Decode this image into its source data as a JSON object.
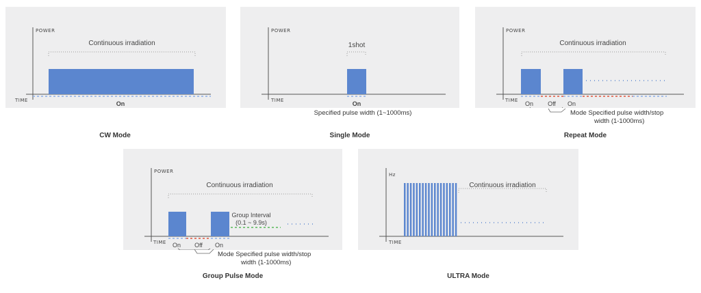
{
  "axis": {
    "power": "POWER",
    "time": "TIME",
    "hz": "Hz"
  },
  "colors": {
    "bar": "#5b86cf",
    "red": "#e0543c",
    "blue_dash": "#8aaee8",
    "green": "#58b85a",
    "panel": "#eeeeef",
    "axis": "#555555"
  },
  "cw": {
    "caption": "CW Mode",
    "range_label": "Continuous irradiation",
    "on_label": "On"
  },
  "single": {
    "caption": "Single Mode",
    "range_label": "1shot",
    "on_label": "On",
    "note": "Specified pulse width (1~1000ms)"
  },
  "repeat": {
    "caption": "Repeat Mode",
    "range_label": "Continuous irradiation",
    "on1": "On",
    "off": "Off",
    "on2": "On",
    "note_line1": "Mode Specified pulse width/stop",
    "note_line2": "width (1-1000ms)"
  },
  "group": {
    "caption": "Group Pulse Mode",
    "range_label": "Continuous irradiation",
    "interval_line1": "Group Interval",
    "interval_line2": "(0.1 ~ 9.9s)",
    "on1": "On",
    "off": "Off",
    "on2": "On",
    "note_line1": "Mode Specified pulse width/stop",
    "note_line2": "width (1-1000ms)"
  },
  "ultra": {
    "caption": "ULTRA Mode",
    "range_label": "Continuous irradiation"
  }
}
